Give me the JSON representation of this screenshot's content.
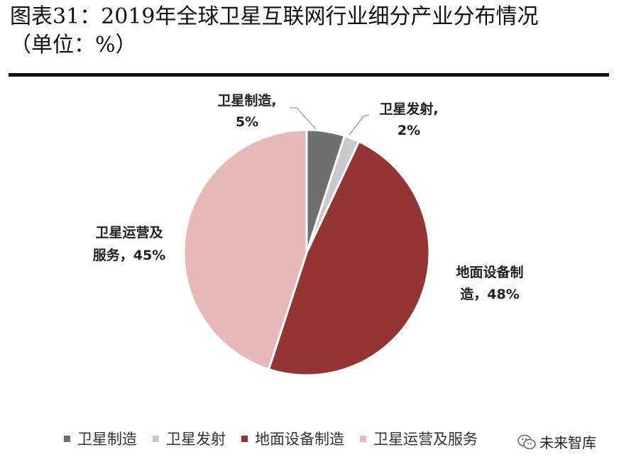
{
  "figure": {
    "title_line1": "图表31：2019年全球卫星互联网行业细分产业分布情况",
    "title_line2": "（单位：%）"
  },
  "chart_data": {
    "type": "pie",
    "title": "2019年全球卫星互联网行业细分产业分布情况",
    "unit": "%",
    "legend_position": "bottom",
    "slices": [
      {
        "name": "卫星制造",
        "value": 5,
        "color": "#6f6f6f",
        "label_line1": "卫星制造,",
        "label_line2": "5%"
      },
      {
        "name": "卫星发射",
        "value": 2,
        "color": "#c9c9c9",
        "label_line1": "卫星发射,",
        "label_line2": "2%"
      },
      {
        "name": "地面设备制造",
        "value": 48,
        "color": "#943434",
        "label_line1": "地面设备制",
        "label_line2": "造，48%"
      },
      {
        "name": "卫星运营及服务",
        "value": 45,
        "color": "#e6b8b8",
        "label_line1": "卫星运营及",
        "label_line2": "服务，45%"
      }
    ]
  },
  "legend": {
    "items": [
      {
        "label": "卫星制造",
        "color": "#6f6f6f"
      },
      {
        "label": "卫星发射",
        "color": "#c9c9c9"
      },
      {
        "label": "地面设备制造",
        "color": "#943434"
      },
      {
        "label": "卫星运营及服务",
        "color": "#e6b8b8"
      }
    ]
  },
  "watermark": {
    "text": "未来智库",
    "icon": "wechat-icon"
  }
}
